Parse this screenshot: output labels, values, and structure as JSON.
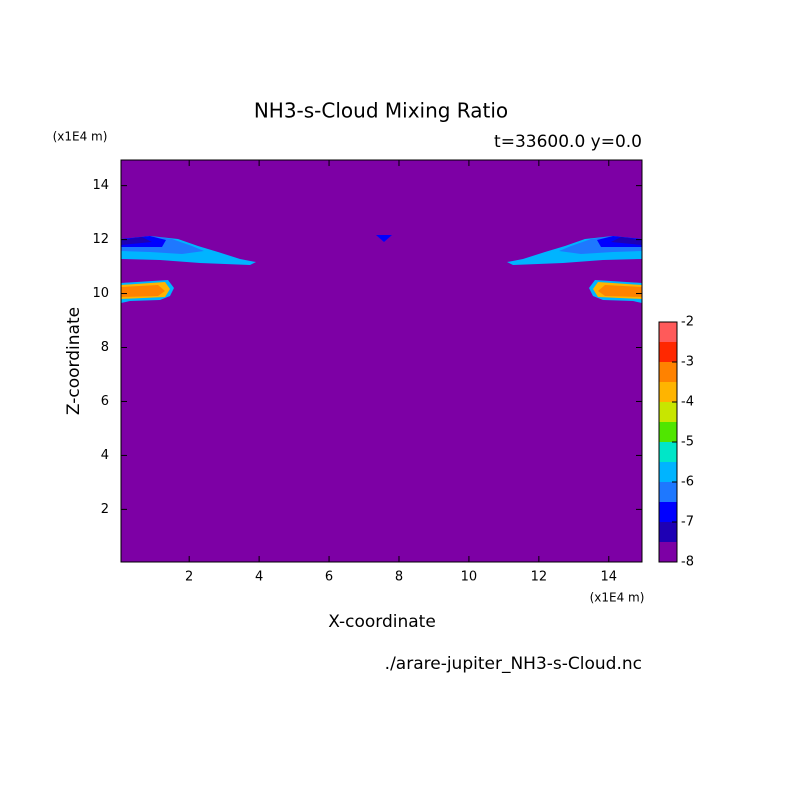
{
  "chart_data": {
    "type": "contour",
    "title": "NH3-s-Cloud Mixing Ratio",
    "subtitle": "t=33600.0 y=0.0",
    "x_label": "X-coordinate",
    "y_label": "Z-coordinate",
    "x_unit": "(x1E4 m)",
    "y_unit": "(x1E4 m)",
    "footer": "./arare-jupiter_NH3-s-Cloud.nc",
    "xlim": [
      0.05,
      14.95
    ],
    "ylim": [
      0.05,
      14.95
    ],
    "xticks": [
      2,
      4,
      6,
      8,
      10,
      12,
      14
    ],
    "yticks": [
      2,
      4,
      6,
      8,
      10,
      12,
      14
    ],
    "colorbar": {
      "levels": [
        -8,
        -7.5,
        -7,
        -6.5,
        -6,
        -5.5,
        -5,
        -4.5,
        -4,
        -3.5,
        -3,
        -2.5,
        -2
      ],
      "colors": [
        "#7d00a5",
        "#1e00b4",
        "#0000ff",
        "#1e78ff",
        "#00b4ff",
        "#00e6c8",
        "#50e600",
        "#c8e600",
        "#ffb400",
        "#ff8200",
        "#ff2800",
        "#ff5a5a",
        "#ffaaaa"
      ],
      "ticks": [
        -8,
        -7,
        -6,
        -5,
        -4,
        -3,
        -2
      ]
    }
  }
}
